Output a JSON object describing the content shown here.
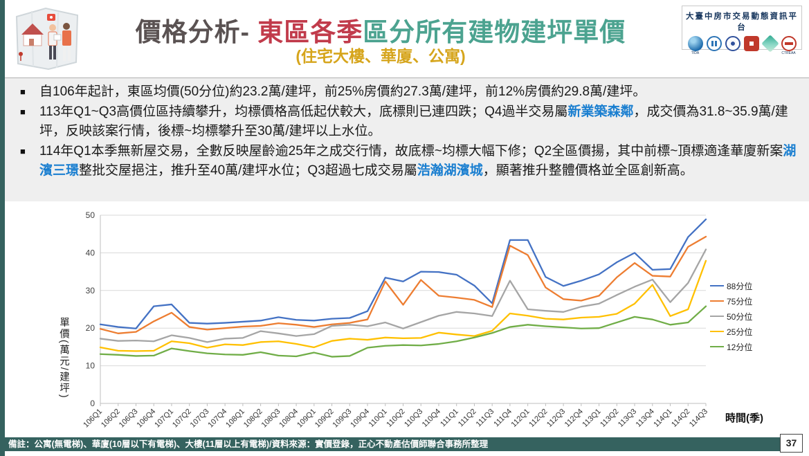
{
  "header": {
    "title_prefix": "價格分析- ",
    "title_red": "東區各季",
    "title_teal": "區分所有建物建坪單價",
    "subtitle": "(住宅大樓、華廈、公寓)",
    "platform_name": "大臺中房市交易動態資訊平台",
    "logos": [
      {
        "id": "tida",
        "caption": "TIDA"
      },
      {
        "id": "buildings",
        "caption": ""
      },
      {
        "id": "emblem",
        "caption": ""
      },
      {
        "id": "print",
        "caption": ""
      },
      {
        "id": "diamond",
        "caption": ""
      },
      {
        "id": "ctreaa",
        "caption": "CTREAA"
      }
    ]
  },
  "bullets": [
    {
      "marker": "■",
      "segments": [
        {
          "t": "自106年起計，東區均價(50分位)約23.2萬/建坪，前25%房價約27.3萬/建坪，前12%房價約29.8萬/建坪。",
          "h": false
        }
      ]
    },
    {
      "marker": "■",
      "segments": [
        {
          "t": "113年Q1~Q3高價位區持續攀升，均標價格高低起伏較大，底標則已連四跌；Q4過半交易屬",
          "h": false
        },
        {
          "t": "新業築森鄰",
          "h": true
        },
        {
          "t": "，成交價為31.8~35.9萬/建坪，反映該案行情，後標~均標攀升至30萬/建坪以上水位。",
          "h": false
        }
      ]
    },
    {
      "marker": "■",
      "segments": [
        {
          "t": "114年Q1本季無新屋交易，全數反映屋齡逾25年之成交行情，故底標~均標大幅下修；Q2全區價揚，其中前標~頂標適逢華廈新案",
          "h": false
        },
        {
          "t": "湖濱三璟",
          "h": true
        },
        {
          "t": "整批交屋挹注，推升至40萬/建坪水位；Q3超過七成交易屬",
          "h": false
        },
        {
          "t": "浩瀚湖濱城",
          "h": true
        },
        {
          "t": "，顯著推升整體價格並全區創新高。",
          "h": false
        }
      ]
    }
  ],
  "chart_data": {
    "type": "line",
    "title": "",
    "xlabel": "時間(季)",
    "ylabel": "單價(萬元/建坪)",
    "ylim": [
      0,
      50
    ],
    "ytick_step": 10,
    "grid": true,
    "legend_position": "right",
    "categories": [
      "106Q1",
      "106Q2",
      "106Q3",
      "106Q4",
      "107Q1",
      "107Q2",
      "107Q3",
      "107Q4",
      "108Q1",
      "108Q2",
      "108Q3",
      "108Q4",
      "109Q1",
      "109Q2",
      "109Q3",
      "109Q4",
      "110Q1",
      "110Q2",
      "110Q3",
      "110Q4",
      "111Q1",
      "111Q2",
      "111Q3",
      "111Q4",
      "112Q1",
      "112Q2",
      "112Q3",
      "112Q4",
      "113Q1",
      "113Q2",
      "113Q3",
      "113Q4",
      "114Q1",
      "114Q2",
      "114Q3"
    ],
    "series": [
      {
        "name": "88分位",
        "color": "#4472C4",
        "values": [
          21.0,
          20.3,
          19.9,
          25.8,
          26.3,
          21.4,
          21.2,
          21.4,
          21.7,
          22.0,
          22.9,
          22.2,
          22.0,
          22.5,
          22.7,
          24.5,
          33.4,
          32.4,
          35.0,
          34.9,
          34.2,
          31.3,
          26.6,
          43.4,
          43.4,
          33.6,
          31.2,
          32.6,
          34.3,
          37.5,
          40.0,
          35.5,
          35.7,
          44.2,
          48.9
        ]
      },
      {
        "name": "75分位",
        "color": "#ED7D31",
        "values": [
          19.8,
          18.6,
          19.0,
          21.8,
          24.1,
          20.3,
          19.6,
          20.0,
          20.4,
          20.6,
          21.3,
          20.9,
          20.3,
          21.0,
          21.4,
          22.3,
          32.4,
          26.2,
          32.8,
          28.6,
          28.1,
          27.5,
          25.6,
          41.9,
          39.4,
          30.8,
          27.7,
          27.3,
          28.6,
          33.5,
          37.3,
          33.9,
          33.7,
          41.6,
          44.3
        ]
      },
      {
        "name": "50分位",
        "color": "#A5A5A5",
        "values": [
          17.2,
          16.6,
          16.7,
          16.5,
          18.1,
          17.4,
          16.3,
          17.2,
          17.4,
          19.2,
          18.6,
          17.9,
          18.4,
          20.6,
          20.9,
          20.5,
          21.5,
          19.9,
          21.6,
          23.3,
          24.3,
          23.9,
          23.2,
          32.6,
          25.0,
          24.6,
          24.3,
          25.7,
          26.5,
          28.8,
          31.0,
          32.9,
          26.9,
          32.0,
          40.9
        ]
      },
      {
        "name": "25分位",
        "color": "#FFC000",
        "values": [
          14.9,
          14.0,
          13.9,
          14.0,
          16.5,
          16.0,
          14.8,
          15.7,
          15.5,
          16.3,
          16.5,
          15.8,
          14.9,
          16.6,
          17.2,
          16.9,
          17.5,
          17.3,
          17.4,
          18.8,
          18.3,
          17.9,
          19.3,
          23.9,
          23.3,
          22.5,
          22.3,
          22.8,
          23.0,
          23.8,
          26.5,
          31.5,
          23.2,
          25.0,
          37.9
        ]
      },
      {
        "name": "12分位",
        "color": "#70AD47",
        "values": [
          13.1,
          12.9,
          12.6,
          12.7,
          14.6,
          13.9,
          13.3,
          13.0,
          12.9,
          13.6,
          12.7,
          12.5,
          13.5,
          12.4,
          12.6,
          14.8,
          15.3,
          15.5,
          15.4,
          15.8,
          16.5,
          17.5,
          18.7,
          20.3,
          20.9,
          20.5,
          20.2,
          19.9,
          20.0,
          21.5,
          23.0,
          22.3,
          20.9,
          21.5,
          25.8
        ]
      }
    ]
  },
  "footer": {
    "note": "備註：公寓(無電梯)、華廈(10層以下有電梯)、大樓(11層以上有電梯)/資料來源：實價登錄，正心不動產估價師聯合事務所整理",
    "page_number": "37"
  }
}
